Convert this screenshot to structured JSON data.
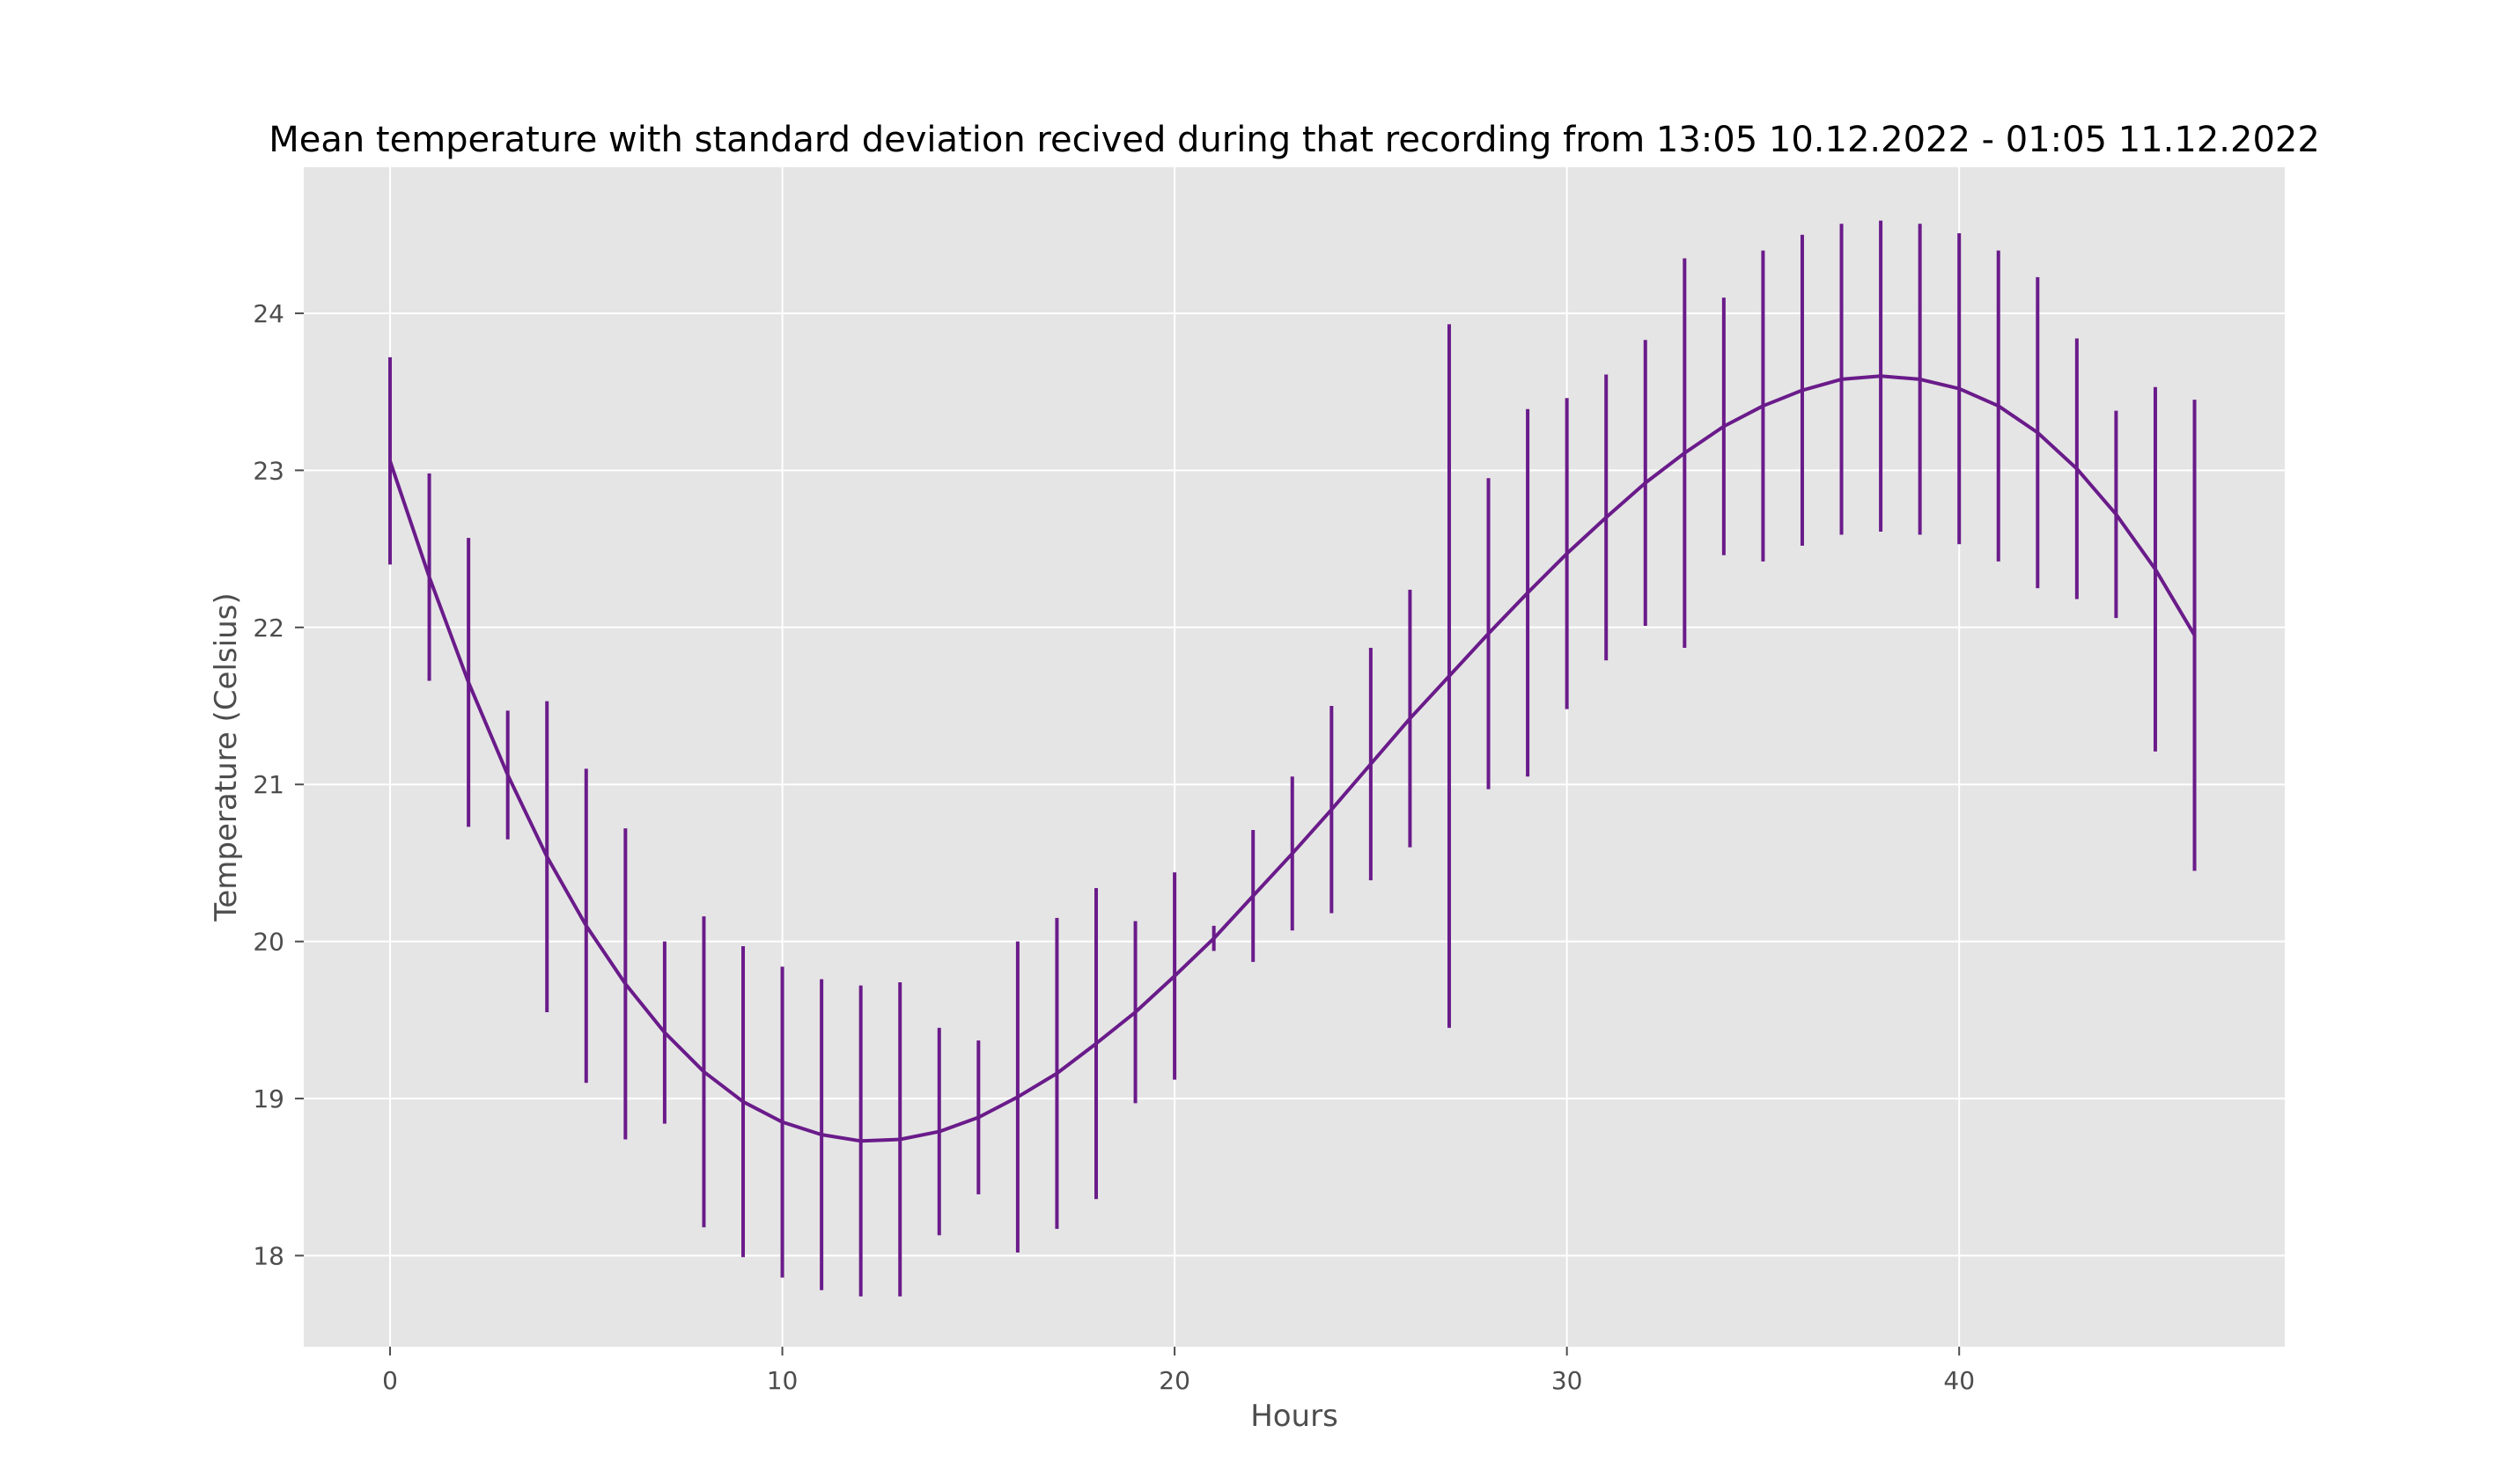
{
  "chart_data": {
    "type": "line",
    "title": "Mean temperature with standard deviation recived during that recording from 13:05 10.12.2022 - 01:05 11.12.2022",
    "xlabel": "Hours",
    "ylabel": "Temperature (Celsius)",
    "xlim": [
      -2.2,
      48.3
    ],
    "ylim": [
      17.42,
      24.93
    ],
    "xticks": [
      0,
      10,
      20,
      30,
      40
    ],
    "yticks": [
      18,
      19,
      20,
      21,
      22,
      23,
      24
    ],
    "grid": true,
    "legend": "none",
    "colors": {
      "series": "#6a1b8a",
      "plot_background": "#e5e5e5",
      "grid": "#ffffff"
    },
    "series": [
      {
        "x": [
          0,
          1,
          2,
          3,
          4,
          5,
          6,
          7,
          8,
          9,
          10,
          11,
          12,
          13,
          14,
          15,
          16,
          17,
          18,
          19,
          20,
          21,
          22,
          23,
          24,
          25,
          26,
          27,
          28,
          29,
          30,
          31,
          32,
          33,
          34,
          35,
          36,
          37,
          38,
          39,
          40,
          41,
          42,
          43,
          44,
          45,
          46
        ],
        "mean": [
          23.06,
          22.32,
          21.65,
          21.06,
          20.54,
          20.1,
          19.73,
          19.42,
          19.17,
          18.98,
          18.85,
          18.77,
          18.73,
          18.74,
          18.79,
          18.88,
          19.01,
          19.16,
          19.35,
          19.55,
          19.78,
          20.02,
          20.29,
          20.56,
          20.84,
          21.13,
          21.42,
          21.69,
          21.96,
          22.22,
          22.47,
          22.7,
          22.92,
          23.11,
          23.28,
          23.41,
          23.51,
          23.58,
          23.6,
          23.58,
          23.52,
          23.41,
          23.24,
          23.01,
          22.72,
          22.37,
          21.95
        ],
        "std": [
          0.66,
          0.66,
          0.92,
          0.41,
          0.99,
          1.0,
          0.99,
          0.58,
          0.99,
          0.99,
          0.99,
          0.99,
          0.99,
          1.0,
          0.66,
          0.49,
          0.99,
          0.99,
          0.99,
          0.58,
          0.66,
          0.08,
          0.42,
          0.49,
          0.66,
          0.74,
          0.82,
          2.24,
          0.99,
          1.17,
          0.99,
          0.91,
          0.91,
          1.24,
          0.82,
          0.99,
          0.99,
          0.99,
          0.99,
          0.99,
          0.99,
          0.99,
          0.99,
          0.83,
          0.66,
          1.16,
          1.5
        ]
      }
    ]
  }
}
